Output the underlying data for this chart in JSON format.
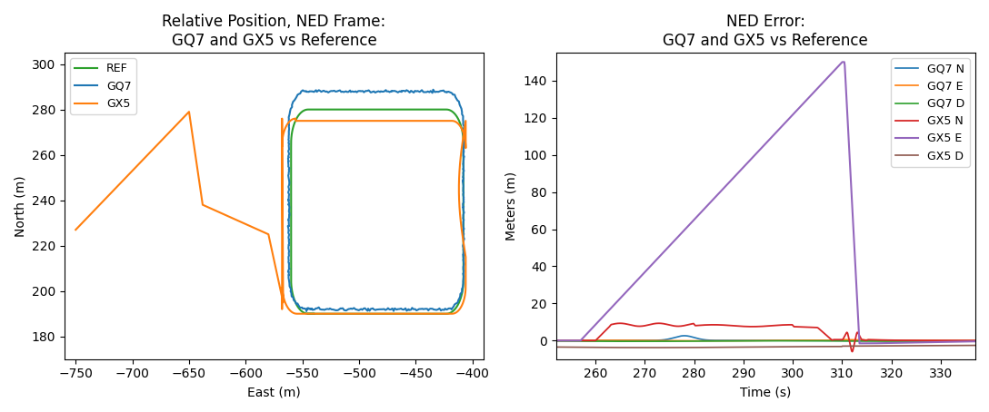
{
  "left_title": "Relative Position, NED Frame:\nGQ7 and GX5 vs Reference",
  "right_title": "NED Error:\nGQ7 and GX5 vs Reference",
  "left_xlabel": "East (m)",
  "left_ylabel": "North (m)",
  "right_xlabel": "Time (s)",
  "right_ylabel": "Meters (m)",
  "left_xlim": [
    -760,
    -390
  ],
  "left_ylim": [
    170,
    305
  ],
  "right_xlim": [
    252,
    337
  ],
  "right_ylim": [
    -10,
    155
  ],
  "ref_color": "#2ca02c",
  "gq7_color": "#1f77b4",
  "gx5_color": "#ff7f0e",
  "gq7_n_color": "#1f77b4",
  "gq7_e_color": "#ff7f0e",
  "gq7_d_color": "#2ca02c",
  "gx5_n_color": "#d62728",
  "gx5_e_color": "#9467bd",
  "gx5_d_color": "#8c564b",
  "fig_width": 10.88,
  "fig_height": 4.54,
  "dpi": 100
}
